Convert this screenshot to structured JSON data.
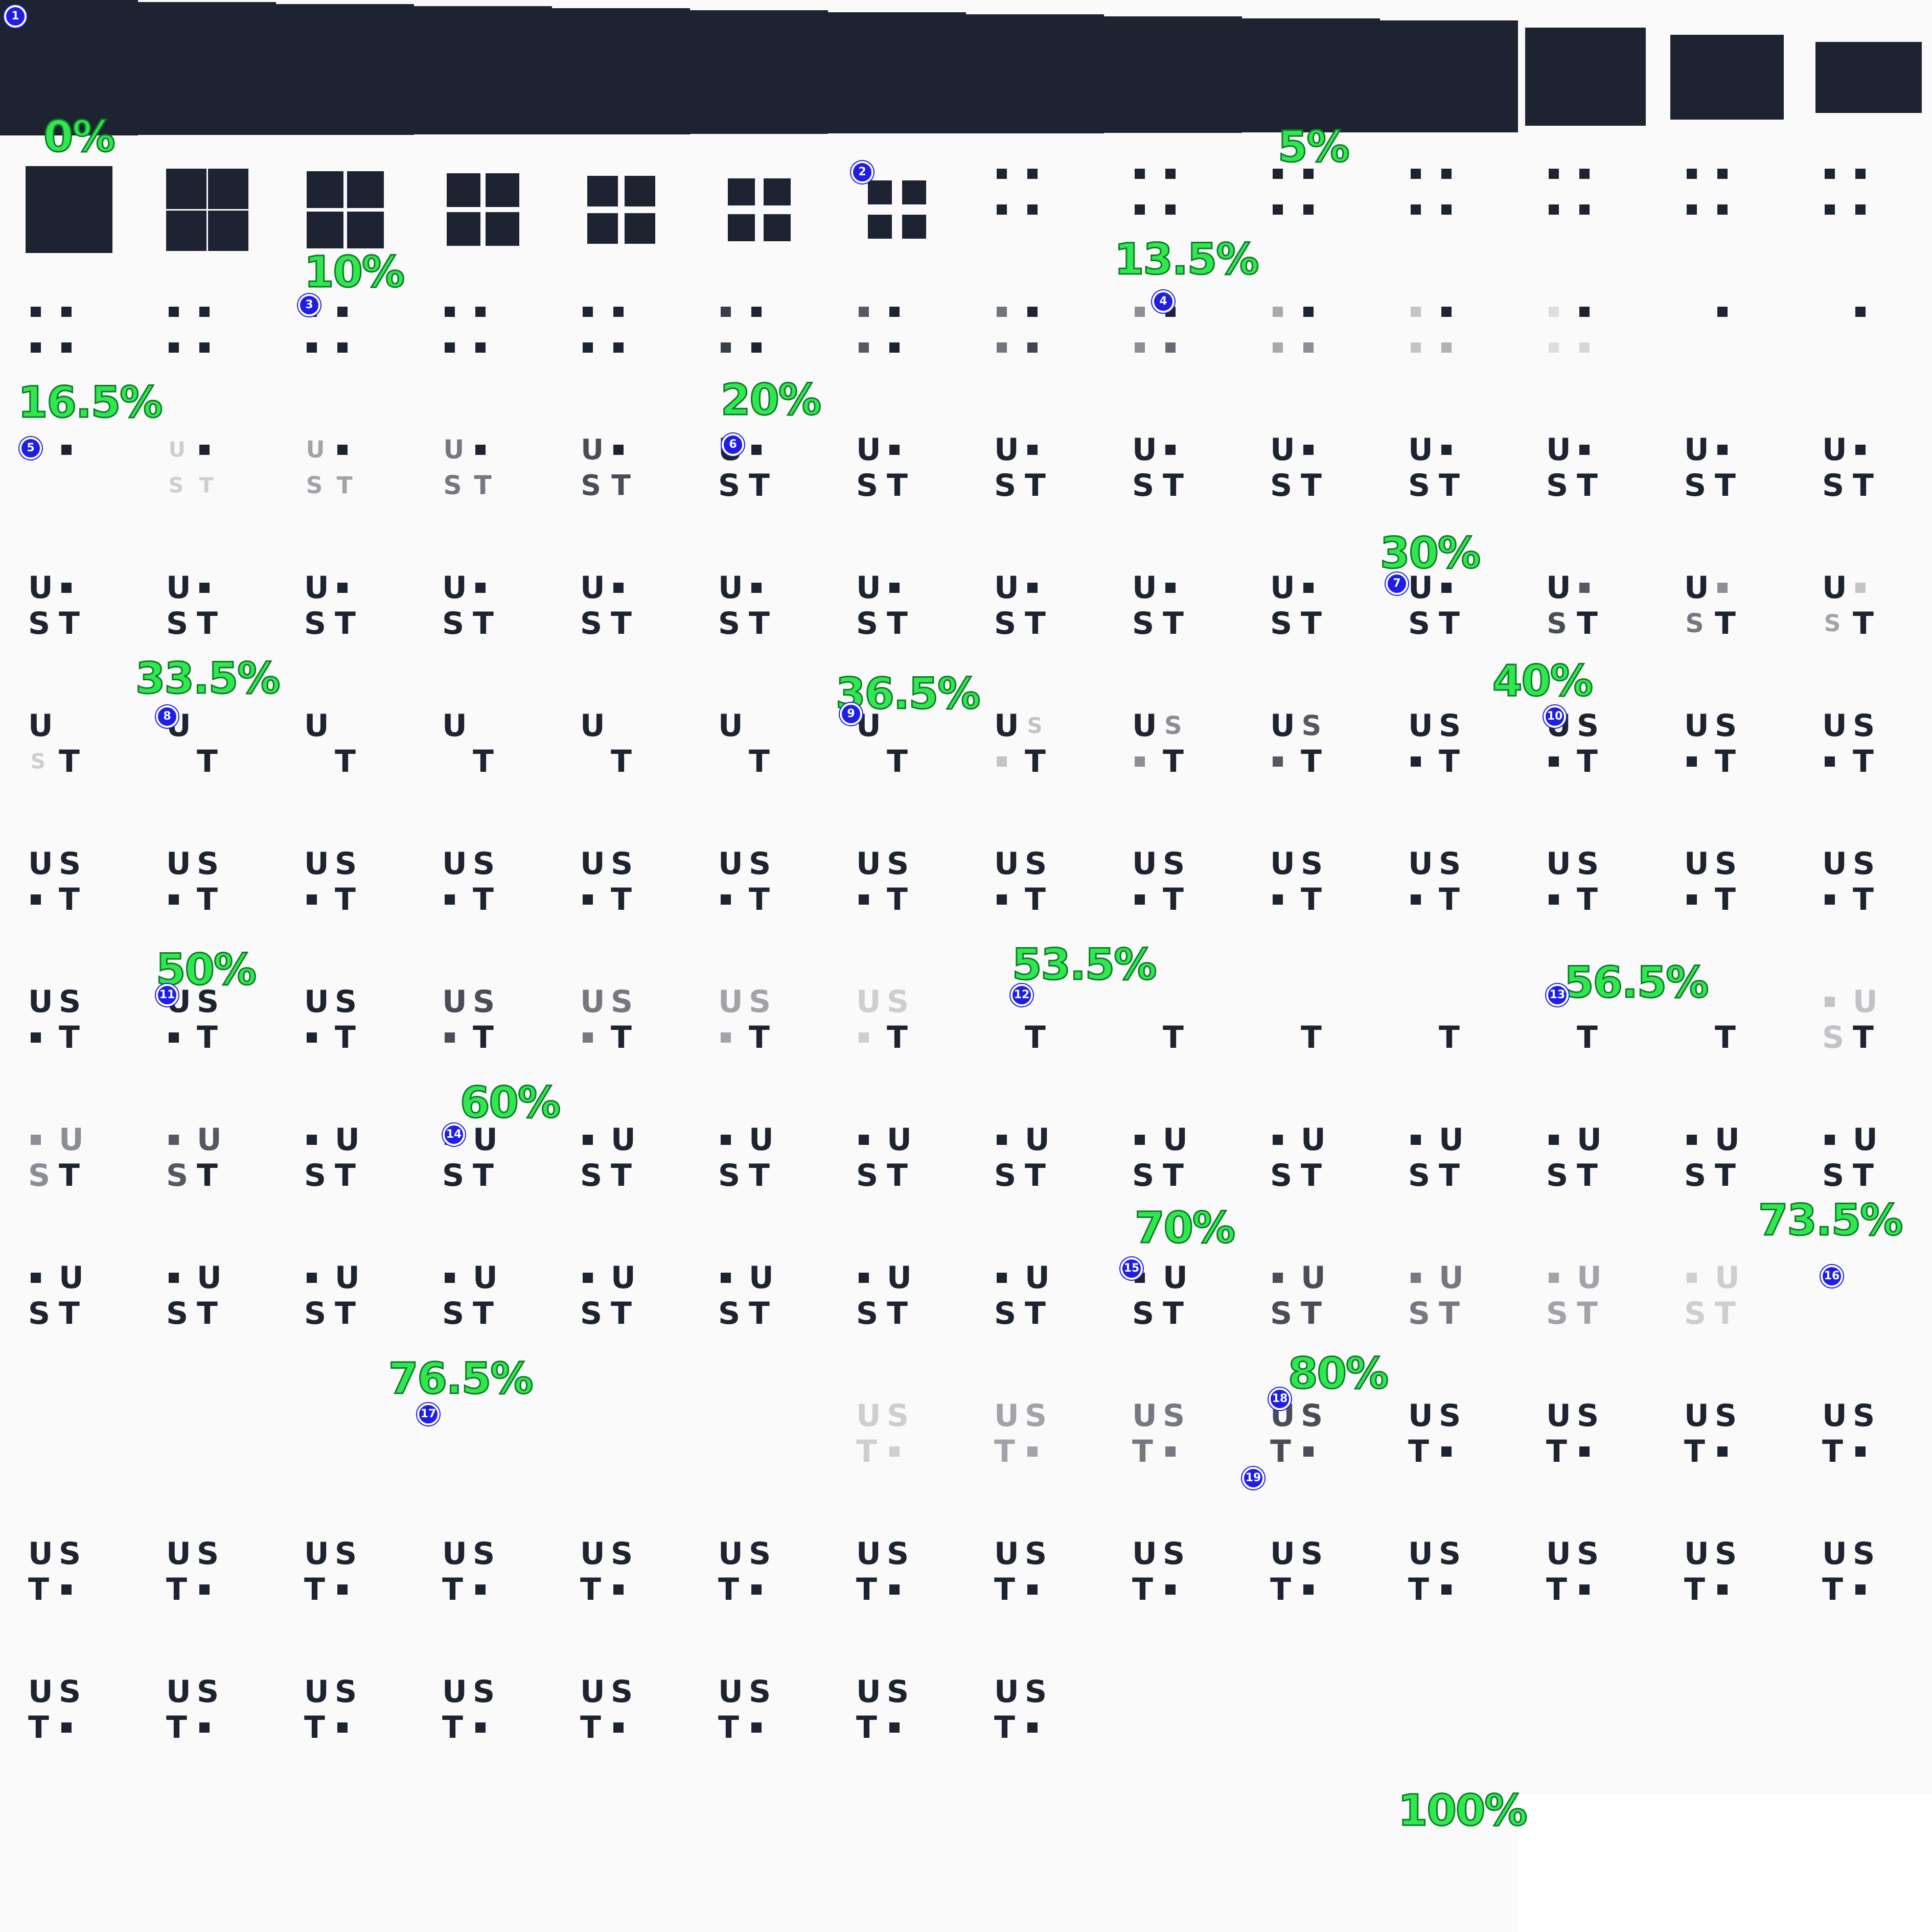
{
  "sheet": {
    "frame_count": 137,
    "letters": [
      "U",
      "S",
      "T"
    ],
    "colors": {
      "ink": "#1d2330",
      "background": "#fafafa",
      "label_fill": "#2ee84e",
      "label_stroke": "#0f7a2a",
      "marker": "#1e1ee6"
    }
  },
  "labels": [
    {
      "text": "0%",
      "frame": 0
    },
    {
      "text": "5%",
      "frame": 9
    },
    {
      "text": "10%",
      "frame": 16
    },
    {
      "text": "13.5%",
      "frame": 22
    },
    {
      "text": "16.5%",
      "frame": 28
    },
    {
      "text": "20%",
      "frame": 33
    },
    {
      "text": "30%",
      "frame": 52
    },
    {
      "text": "33.5%",
      "frame": 57
    },
    {
      "text": "36.5%",
      "frame": 62
    },
    {
      "text": "40%",
      "frame": 67
    },
    {
      "text": "50%",
      "frame": 85
    },
    {
      "text": "53.5%",
      "frame": 91
    },
    {
      "text": "56.5%",
      "frame": 96
    },
    {
      "text": "60%",
      "frame": 101
    },
    {
      "text": "70%",
      "frame": 120
    },
    {
      "text": "73.5%",
      "frame": 125
    },
    {
      "text": "76.5%",
      "frame": 131
    },
    {
      "text": "80%",
      "frame": 136
    },
    {
      "text": "100%",
      "frame": 136
    }
  ],
  "markers": [
    "1",
    "2",
    "3",
    "4",
    "5",
    "6",
    "7",
    "8",
    "9",
    "10",
    "11",
    "12",
    "13",
    "14",
    "15",
    "16",
    "17",
    "18",
    "19"
  ]
}
